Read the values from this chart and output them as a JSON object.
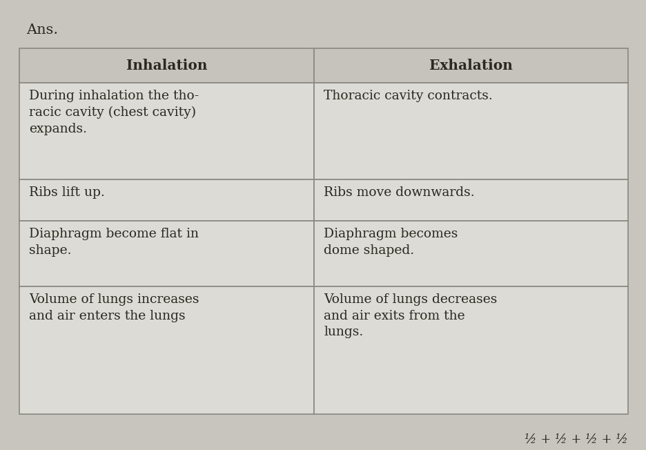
{
  "title": "Ans.",
  "col_headers": [
    "Inhalation",
    "Exhalation"
  ],
  "rows": [
    [
      "During inhalation the tho-\nracic cavity (chest cavity)\nexpands.",
      "Thoracic cavity contracts."
    ],
    [
      "Ribs lift up.",
      "Ribs move downwards."
    ],
    [
      "Diaphragm become flat in\nshape.",
      "Diaphragm becomes\ndome shaped."
    ],
    [
      "Volume of lungs increases\nand air enters the lungs",
      "Volume of lungs decreases\nand air exits from the\nlungs."
    ]
  ],
  "footer": "½ + ½ + ½ + ½",
  "page_bg": "#c8c5be",
  "cell_bg": "#dddbd5",
  "header_bg": "#c5c3bc",
  "border_color": "#888880",
  "text_color": "#2a2820",
  "title_color": "#2a2820",
  "font_size": 13.5,
  "header_font_size": 14.5,
  "title_font_size": 15,
  "footer_font_size": 13
}
